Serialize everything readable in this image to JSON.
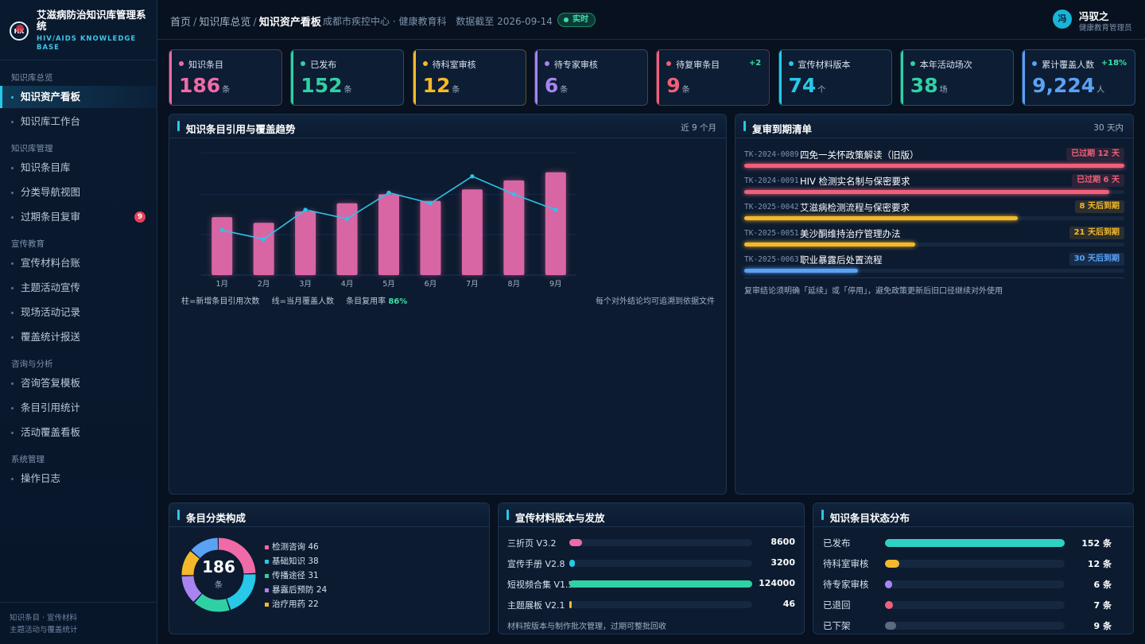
{
  "sidebar": {
    "title": "艾滋病防治知识库管理系统",
    "subtitle": "HIV/AIDS KNOWLEDGE BASE",
    "groups": [
      {
        "label": "知识库总览",
        "items": [
          {
            "label": "知识资产看板",
            "active": true
          },
          {
            "label": "知识库工作台"
          }
        ]
      },
      {
        "label": "知识库管理",
        "items": [
          {
            "label": "知识条目库"
          },
          {
            "label": "分类导航视图"
          },
          {
            "label": "过期条目复审",
            "badge": "9"
          }
        ]
      },
      {
        "label": "宣传教育",
        "items": [
          {
            "label": "宣传材料台账"
          },
          {
            "label": "主题活动宣传"
          },
          {
            "label": "现场活动记录"
          },
          {
            "label": "覆盖统计报送"
          }
        ]
      },
      {
        "label": "咨询与分析",
        "items": [
          {
            "label": "咨询答复模板"
          },
          {
            "label": "条目引用统计"
          },
          {
            "label": "活动覆盖看板"
          }
        ]
      },
      {
        "label": "系统管理",
        "items": [
          {
            "label": "操作日志"
          }
        ]
      }
    ],
    "footer_line1": "知识条目 · 宣传材料",
    "footer_line2": "主题活动与覆盖统计"
  },
  "header": {
    "crumbs": [
      "首页",
      "知识库总览",
      "知识资产看板"
    ],
    "org": "成都市疾控中心 · 健康教育科",
    "data_date": "数据截至 2026-09-14",
    "live_label": "实时",
    "user_name": "冯驭之",
    "user_role": "健康教育管理员",
    "avatar_text": "冯"
  },
  "kpis": [
    {
      "label": "知识条目",
      "value": "186",
      "unit": "条",
      "color": "#f06aa8"
    },
    {
      "label": "已发布",
      "value": "152",
      "unit": "条",
      "color": "#2fd1a4"
    },
    {
      "label": "待科室审核",
      "value": "12",
      "unit": "条",
      "color": "#f5b82a"
    },
    {
      "label": "待专家审核",
      "value": "6",
      "unit": "条",
      "color": "#a784f0"
    },
    {
      "label": "待复审条目",
      "value": "9",
      "unit": "条",
      "color": "#f0607a",
      "delta": "+2"
    },
    {
      "label": "宣传材料版本",
      "value": "74",
      "unit": "个",
      "color": "#27c8e8"
    },
    {
      "label": "本年活动场次",
      "value": "38",
      "unit": "场",
      "color": "#2fd1a4"
    },
    {
      "label": "累计覆盖人数",
      "value": "9,224",
      "unit": "人",
      "color": "#5aa2f5",
      "delta": "+18%"
    }
  ],
  "trend": {
    "title": "知识条目引用与覆盖趋势",
    "range": "近 9 个月",
    "legend_bar": "柱=新增条目引用次数",
    "legend_line": "线=当月覆盖人数",
    "reuse_label": "条目复用率",
    "reuse_value": "86%",
    "trace_note": "每个对外结论均可追溯到依据文件"
  },
  "chart_data": {
    "type": "bar",
    "categories": [
      "1月",
      "2月",
      "3月",
      "4月",
      "5月",
      "6月",
      "7月",
      "8月",
      "9月"
    ],
    "series": [
      {
        "name": "新增条目引用次数",
        "type": "bar",
        "values": [
          71,
          64,
          78,
          88,
          99,
          91,
          105,
          116,
          126
        ]
      },
      {
        "name": "当月覆盖人数",
        "type": "line",
        "values": [
          55,
          44,
          80,
          69,
          101,
          88,
          121,
          99,
          80
        ]
      }
    ],
    "ylim": [
      0,
      150
    ],
    "bar_color": "#d966a4",
    "line_color": "#2cc4e6"
  },
  "review": {
    "title": "复审到期清单",
    "range": "30 天内",
    "items": [
      {
        "code": "TK-2024-0089",
        "name": "四免一关怀政策解读（旧版）",
        "tag": "已过期 12 天",
        "progress": 1.0,
        "color": "#f0607a"
      },
      {
        "code": "TK-2024-0091",
        "name": "HIV 检测实名制与保密要求",
        "tag": "已过期 6 天",
        "progress": 0.96,
        "color": "#f0607a"
      },
      {
        "code": "TK-2025-0042",
        "name": "艾滋病检测流程与保密要求",
        "tag": "8 天后到期",
        "progress": 0.72,
        "color": "#f5b82a"
      },
      {
        "code": "TK-2025-0051",
        "name": "美沙酮维持治疗管理办法",
        "tag": "21 天后到期",
        "progress": 0.45,
        "color": "#f5b82a"
      },
      {
        "code": "TK-2025-0063",
        "name": "职业暴露后处置流程",
        "tag": "30 天后到期",
        "progress": 0.3,
        "color": "#5aa2f5"
      }
    ],
    "note": "复审结论须明确「延续」或「停用」，避免政策更新后旧口径继续对外使用"
  },
  "category": {
    "title": "条目分类构成",
    "total": "186",
    "unit": "条",
    "items": [
      {
        "label": "检测咨询 46",
        "value": 46,
        "color": "#f06aa8"
      },
      {
        "label": "基础知识 38",
        "value": 38,
        "color": "#27c8e8"
      },
      {
        "label": "传播途径 31",
        "value": 31,
        "color": "#2fd1a4"
      },
      {
        "label": "暴露后预防 24",
        "value": 24,
        "color": "#a784f0"
      },
      {
        "label": "治疗用药 22",
        "value": 22,
        "color": "#f5b82a"
      }
    ],
    "remainder_color": "#5aa2f5"
  },
  "materials": {
    "title": "宣传材料版本与发放",
    "items": [
      {
        "name": "三折页 V3.2",
        "value": "8600",
        "fraction": 0.07,
        "color": "#f06aa8"
      },
      {
        "name": "宣传手册 V2.8",
        "value": "3200",
        "fraction": 0.03,
        "color": "#27c8e8"
      },
      {
        "name": "短视频合集 V1.5",
        "value": "124000",
        "fraction": 1.0,
        "color": "#2fd1a4"
      },
      {
        "name": "主题展板 V2.1",
        "value": "46",
        "fraction": 0.01,
        "color": "#f5b82a"
      }
    ],
    "note": "材料按版本与制作批次管理，过期可整批回收"
  },
  "status": {
    "title": "知识条目状态分布",
    "items": [
      {
        "name": "已发布",
        "value": "152 条",
        "fraction": 1.0,
        "color": "#2fd1c0"
      },
      {
        "name": "待科室审核",
        "value": "12 条",
        "fraction": 0.08,
        "color": "#f5b82a"
      },
      {
        "name": "待专家审核",
        "value": "6 条",
        "fraction": 0.04,
        "color": "#a784f0"
      },
      {
        "name": "已退回",
        "value": "7 条",
        "fraction": 0.046,
        "color": "#f0607a"
      },
      {
        "name": "已下架",
        "value": "9 条",
        "fraction": 0.06,
        "color": "#5b6b80"
      }
    ]
  }
}
